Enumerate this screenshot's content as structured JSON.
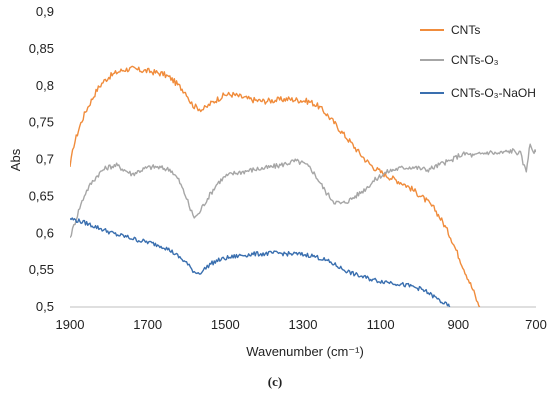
{
  "chart_data": {
    "type": "line",
    "xlabel": "Wavenumber (cm⁻¹)",
    "ylabel": "Abs",
    "caption": "(c)",
    "xlim": [
      1900,
      700
    ],
    "ylim": [
      0.5,
      0.9
    ],
    "x_reversed": true,
    "x_ticks": [
      "1900",
      "1700",
      "1500",
      "1300",
      "1100",
      "900",
      "700"
    ],
    "y_ticks": [
      "0,5",
      "0,55",
      "0,6",
      "0,65",
      "0,7",
      "0,75",
      "0,8",
      "0,85",
      "0,9"
    ],
    "grid": false,
    "legend_position": "top-right",
    "series": [
      {
        "name": "CNTs",
        "color": "#f08c3c",
        "points": [
          [
            1900,
            0.69
          ],
          [
            1890,
            0.72
          ],
          [
            1875,
            0.745
          ],
          [
            1860,
            0.765
          ],
          [
            1845,
            0.78
          ],
          [
            1830,
            0.795
          ],
          [
            1815,
            0.805
          ],
          [
            1800,
            0.812
          ],
          [
            1780,
            0.818
          ],
          [
            1760,
            0.822
          ],
          [
            1740,
            0.823
          ],
          [
            1720,
            0.821
          ],
          [
            1700,
            0.82
          ],
          [
            1680,
            0.818
          ],
          [
            1660,
            0.816
          ],
          [
            1640,
            0.81
          ],
          [
            1620,
            0.8
          ],
          [
            1600,
            0.79
          ],
          [
            1590,
            0.778
          ],
          [
            1580,
            0.772
          ],
          [
            1570,
            0.77
          ],
          [
            1560,
            0.768
          ],
          [
            1550,
            0.77
          ],
          [
            1540,
            0.775
          ],
          [
            1520,
            0.782
          ],
          [
            1500,
            0.788
          ],
          [
            1480,
            0.788
          ],
          [
            1460,
            0.785
          ],
          [
            1440,
            0.782
          ],
          [
            1420,
            0.78
          ],
          [
            1400,
            0.779
          ],
          [
            1380,
            0.78
          ],
          [
            1360,
            0.781
          ],
          [
            1340,
            0.782
          ],
          [
            1320,
            0.781
          ],
          [
            1300,
            0.78
          ],
          [
            1280,
            0.778
          ],
          [
            1260,
            0.772
          ],
          [
            1240,
            0.762
          ],
          [
            1220,
            0.75
          ],
          [
            1200,
            0.737
          ],
          [
            1180,
            0.725
          ],
          [
            1160,
            0.712
          ],
          [
            1140,
            0.7
          ],
          [
            1120,
            0.69
          ],
          [
            1100,
            0.683
          ],
          [
            1080,
            0.677
          ],
          [
            1060,
            0.672
          ],
          [
            1040,
            0.667
          ],
          [
            1020,
            0.66
          ],
          [
            1000,
            0.652
          ],
          [
            980,
            0.643
          ],
          [
            960,
            0.632
          ],
          [
            940,
            0.615
          ],
          [
            920,
            0.595
          ],
          [
            900,
            0.57
          ],
          [
            880,
            0.545
          ],
          [
            860,
            0.52
          ],
          [
            850,
            0.505
          ],
          [
            845,
            0.5
          ]
        ]
      },
      {
        "name": "CNTs-O₃",
        "color": "#a6a6a6",
        "points": [
          [
            1900,
            0.594
          ],
          [
            1890,
            0.61
          ],
          [
            1875,
            0.635
          ],
          [
            1860,
            0.655
          ],
          [
            1845,
            0.668
          ],
          [
            1830,
            0.678
          ],
          [
            1815,
            0.686
          ],
          [
            1800,
            0.69
          ],
          [
            1780,
            0.692
          ],
          [
            1760,
            0.686
          ],
          [
            1740,
            0.68
          ],
          [
            1720,
            0.685
          ],
          [
            1700,
            0.689
          ],
          [
            1680,
            0.69
          ],
          [
            1660,
            0.688
          ],
          [
            1640,
            0.686
          ],
          [
            1620,
            0.672
          ],
          [
            1600,
            0.648
          ],
          [
            1590,
            0.632
          ],
          [
            1580,
            0.622
          ],
          [
            1570,
            0.625
          ],
          [
            1560,
            0.635
          ],
          [
            1540,
            0.652
          ],
          [
            1520,
            0.668
          ],
          [
            1500,
            0.677
          ],
          [
            1480,
            0.681
          ],
          [
            1460,
            0.683
          ],
          [
            1440,
            0.685
          ],
          [
            1420,
            0.687
          ],
          [
            1400,
            0.688
          ],
          [
            1380,
            0.69
          ],
          [
            1360,
            0.692
          ],
          [
            1340,
            0.695
          ],
          [
            1320,
            0.698
          ],
          [
            1300,
            0.695
          ],
          [
            1280,
            0.688
          ],
          [
            1260,
            0.672
          ],
          [
            1240,
            0.655
          ],
          [
            1220,
            0.643
          ],
          [
            1200,
            0.64
          ],
          [
            1180,
            0.645
          ],
          [
            1160,
            0.652
          ],
          [
            1140,
            0.66
          ],
          [
            1120,
            0.67
          ],
          [
            1100,
            0.678
          ],
          [
            1080,
            0.684
          ],
          [
            1060,
            0.687
          ],
          [
            1040,
            0.689
          ],
          [
            1020,
            0.69
          ],
          [
            1000,
            0.688
          ],
          [
            980,
            0.686
          ],
          [
            960,
            0.69
          ],
          [
            940,
            0.695
          ],
          [
            920,
            0.698
          ],
          [
            900,
            0.705
          ],
          [
            880,
            0.708
          ],
          [
            860,
            0.705
          ],
          [
            840,
            0.708
          ],
          [
            820,
            0.71
          ],
          [
            800,
            0.708
          ],
          [
            780,
            0.71
          ],
          [
            760,
            0.712
          ],
          [
            740,
            0.708
          ],
          [
            730,
            0.69
          ],
          [
            725,
            0.685
          ],
          [
            720,
            0.705
          ],
          [
            715,
            0.72
          ],
          [
            710,
            0.715
          ],
          [
            705,
            0.71
          ],
          [
            700,
            0.71
          ]
        ]
      },
      {
        "name": "CNTs-O₃-NaOH",
        "color": "#3a6faf",
        "points": [
          [
            1900,
            0.62
          ],
          [
            1880,
            0.617
          ],
          [
            1860,
            0.614
          ],
          [
            1840,
            0.61
          ],
          [
            1820,
            0.606
          ],
          [
            1800,
            0.602
          ],
          [
            1780,
            0.598
          ],
          [
            1760,
            0.596
          ],
          [
            1740,
            0.593
          ],
          [
            1720,
            0.59
          ],
          [
            1700,
            0.588
          ],
          [
            1680,
            0.585
          ],
          [
            1660,
            0.582
          ],
          [
            1640,
            0.576
          ],
          [
            1620,
            0.568
          ],
          [
            1600,
            0.56
          ],
          [
            1590,
            0.553
          ],
          [
            1580,
            0.548
          ],
          [
            1570,
            0.546
          ],
          [
            1560,
            0.548
          ],
          [
            1550,
            0.553
          ],
          [
            1540,
            0.558
          ],
          [
            1520,
            0.563
          ],
          [
            1500,
            0.566
          ],
          [
            1480,
            0.568
          ],
          [
            1460,
            0.57
          ],
          [
            1440,
            0.571
          ],
          [
            1420,
            0.572
          ],
          [
            1400,
            0.572
          ],
          [
            1380,
            0.573
          ],
          [
            1360,
            0.573
          ],
          [
            1340,
            0.572
          ],
          [
            1320,
            0.572
          ],
          [
            1300,
            0.571
          ],
          [
            1280,
            0.57
          ],
          [
            1260,
            0.567
          ],
          [
            1240,
            0.563
          ],
          [
            1220,
            0.558
          ],
          [
            1200,
            0.552
          ],
          [
            1180,
            0.547
          ],
          [
            1160,
            0.543
          ],
          [
            1140,
            0.54
          ],
          [
            1120,
            0.537
          ],
          [
            1100,
            0.535
          ],
          [
            1080,
            0.534
          ],
          [
            1060,
            0.532
          ],
          [
            1040,
            0.53
          ],
          [
            1020,
            0.528
          ],
          [
            1000,
            0.525
          ],
          [
            980,
            0.52
          ],
          [
            960,
            0.513
          ],
          [
            940,
            0.506
          ],
          [
            925,
            0.501
          ],
          [
            920,
            0.5
          ]
        ]
      }
    ]
  }
}
